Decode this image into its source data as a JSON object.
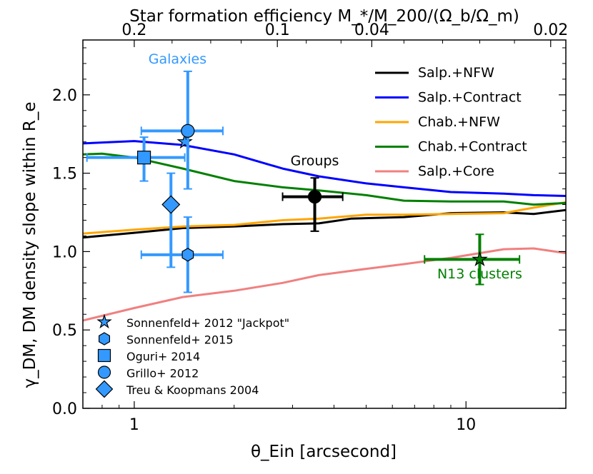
{
  "chart_data": {
    "type": "line",
    "title": "",
    "xlabel": "θ_Ein [arcsecond]",
    "ylabel": "γ_DM, DM density slope within R_e",
    "top_xlabel": "Star formation efficiency M_*/M_200/(Ω_b/Ω_m)",
    "xscale": "log",
    "xlim": [
      0.7,
      20
    ],
    "ylim": [
      0.0,
      2.35
    ],
    "x_ticks": [
      1,
      10
    ],
    "x_tick_labels": [
      "1",
      "10"
    ],
    "y_ticks": [
      0.0,
      0.5,
      1.0,
      1.5,
      2.0
    ],
    "y_tick_labels": [
      "0.0",
      "0.5",
      "1.0",
      "1.5",
      "2.0"
    ],
    "top_ticks": [
      {
        "label": "0.2",
        "x": 1.0
      },
      {
        "label": "0.1",
        "x": 2.7
      },
      {
        "label": "0.04",
        "x": 5.2
      },
      {
        "label": "0.02",
        "x": 18.0
      }
    ],
    "series": [
      {
        "name": "Salp.+NFW",
        "color": "#000000",
        "x": [
          0.7,
          1.0,
          1.4,
          2.0,
          2.8,
          3.6,
          4.5,
          6.5,
          9.0,
          13.0,
          16.0,
          20.0
        ],
        "y": [
          1.09,
          1.12,
          1.15,
          1.16,
          1.175,
          1.18,
          1.21,
          1.22,
          1.245,
          1.25,
          1.24,
          1.265
        ]
      },
      {
        "name": "Salp.+Contract",
        "color": "#0000ff",
        "x": [
          0.7,
          1.0,
          1.4,
          2.0,
          2.8,
          3.6,
          5.0,
          6.5,
          9.0,
          13.0,
          16.0,
          20.0
        ],
        "y": [
          1.69,
          1.705,
          1.68,
          1.62,
          1.53,
          1.48,
          1.435,
          1.41,
          1.38,
          1.37,
          1.36,
          1.355
        ]
      },
      {
        "name": "Chab.+NFW",
        "color": "#ffa500",
        "x": [
          0.7,
          1.0,
          1.4,
          2.0,
          2.8,
          3.6,
          5.0,
          6.5,
          9.0,
          13.0,
          16.0,
          20.0
        ],
        "y": [
          1.115,
          1.14,
          1.16,
          1.17,
          1.2,
          1.21,
          1.235,
          1.235,
          1.24,
          1.245,
          1.28,
          1.315
        ]
      },
      {
        "name": "Chab.+Contract",
        "color": "#008000",
        "x": [
          0.7,
          0.8,
          1.0,
          1.4,
          2.0,
          2.8,
          3.6,
          5.0,
          6.5,
          9.0,
          13.0,
          16.0,
          20.0
        ],
        "y": [
          1.62,
          1.625,
          1.6,
          1.53,
          1.45,
          1.41,
          1.39,
          1.36,
          1.325,
          1.32,
          1.32,
          1.3,
          1.31
        ]
      },
      {
        "name": "Salp.+Core",
        "color": "#f08080",
        "x": [
          0.7,
          1.0,
          1.4,
          2.0,
          2.8,
          3.6,
          5.0,
          6.5,
          9.0,
          13.0,
          16.0,
          20.0
        ],
        "y": [
          0.56,
          0.64,
          0.71,
          0.75,
          0.8,
          0.85,
          0.89,
          0.92,
          0.96,
          1.015,
          1.02,
          0.99
        ]
      }
    ],
    "points": [
      {
        "name": "Sonnenfeld+ 2012 \"Jackpot\"",
        "marker": "star",
        "color": "#3399ff",
        "x": 1.42,
        "y": 1.7,
        "xerr": null,
        "yerr": null
      },
      {
        "name": "Sonnenfeld+ 2015",
        "marker": "hexagon",
        "color": "#3399ff",
        "x": 1.45,
        "y": 0.98,
        "xerr": [
          1.05,
          1.85
        ],
        "yerr": [
          0.74,
          1.22
        ]
      },
      {
        "name": "Oguri+ 2014",
        "marker": "square",
        "color": "#3399ff",
        "x": 1.07,
        "y": 1.6,
        "xerr": [
          0.72,
          1.42
        ],
        "yerr": [
          1.45,
          1.73
        ]
      },
      {
        "name": "Grillo+ 2012",
        "marker": "circle",
        "color": "#3399ff",
        "x": 1.45,
        "y": 1.77,
        "xerr": [
          1.05,
          1.85
        ],
        "yerr": [
          1.4,
          2.15
        ]
      },
      {
        "name": "Treu & Koopmans 2004",
        "marker": "diamond",
        "color": "#3399ff",
        "x": 1.29,
        "y": 1.3,
        "xerr": null,
        "yerr": [
          0.9,
          1.5
        ]
      },
      {
        "name": "Groups",
        "marker": "circle",
        "color": "#000000",
        "x": 3.5,
        "y": 1.35,
        "xerr": [
          2.8,
          4.25
        ],
        "yerr": [
          1.13,
          1.47
        ]
      },
      {
        "name": "N13 clusters",
        "marker": "star",
        "color": "#008000",
        "x": 11.0,
        "y": 0.95,
        "xerr": [
          7.5,
          14.5
        ],
        "yerr": [
          0.79,
          1.11
        ]
      }
    ],
    "annotations": [
      {
        "text": "Galaxies",
        "color": "#3399ff",
        "x": 1.35,
        "y": 2.2
      },
      {
        "text": "Groups",
        "color": "#000000",
        "x": 3.5,
        "y": 1.55
      },
      {
        "text": "N13 clusters",
        "color": "#008000",
        "x": 11.0,
        "y": 0.83
      }
    ],
    "legend_lines_placement": "top-right",
    "legend_markers_placement": "bottom-left"
  }
}
